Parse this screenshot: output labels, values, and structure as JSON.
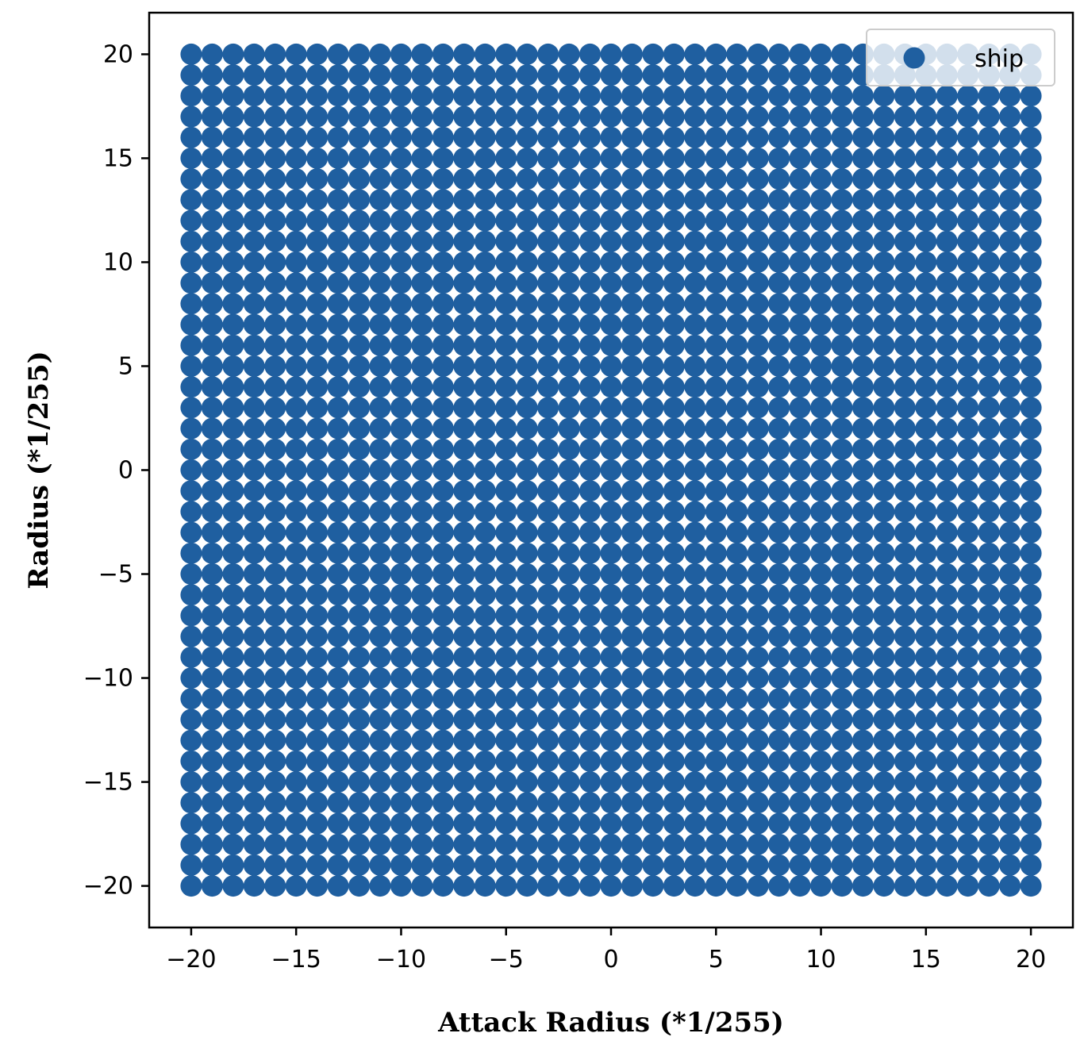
{
  "chart_data": {
    "type": "scatter",
    "title": "",
    "xlabel": "Attack Radius (*1/255)",
    "ylabel": "Radius (*1/255)",
    "xlim": [
      -22,
      22
    ],
    "ylim": [
      -22,
      22
    ],
    "xticks": [
      -20,
      -15,
      -10,
      -5,
      0,
      5,
      10,
      15,
      20
    ],
    "yticks": [
      -20,
      -15,
      -10,
      -5,
      0,
      5,
      10,
      15,
      20
    ],
    "xtick_labels": [
      "−20",
      "−15",
      "−10",
      "−5",
      "0",
      "5",
      "10",
      "15",
      "20"
    ],
    "ytick_labels": [
      "−20",
      "−15",
      "−10",
      "−5",
      "0",
      "5",
      "10",
      "15",
      "20"
    ],
    "grid": false,
    "legend": {
      "position": "top-right",
      "entries": [
        "ship"
      ]
    },
    "series": [
      {
        "name": "ship",
        "color": "#1f5fa0",
        "x_range": [
          -20,
          20
        ],
        "y_range": [
          -20,
          20
        ],
        "step": 1,
        "description_of_points": "all integer (x, y) pairs with x and y from -20 to 20"
      }
    ]
  }
}
